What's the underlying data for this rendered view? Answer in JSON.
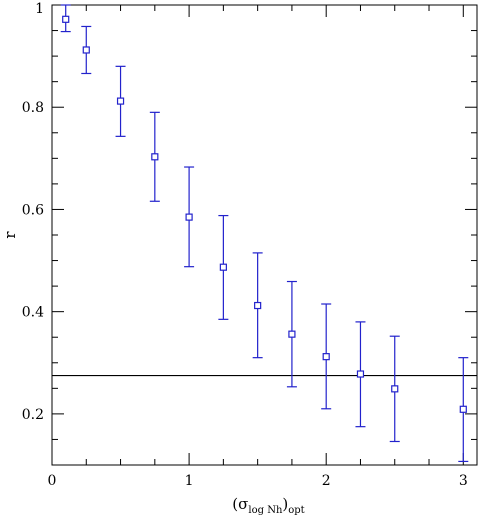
{
  "chart_data": {
    "type": "scatter",
    "title": "",
    "xlabel": "(σ",
    "xlabel_sub": "log Nh",
    "xlabel_close": ")",
    "xlabel_sub2": "opt",
    "ylabel": "r",
    "xlim": [
      0,
      3.1
    ],
    "ylim": [
      0.1,
      1.0
    ],
    "x_ticks": [
      0,
      1,
      2,
      3
    ],
    "x_tick_labels": [
      "0",
      "1",
      "2",
      "3"
    ],
    "y_ticks": [
      0.2,
      0.4,
      0.6,
      0.8,
      1.0
    ],
    "y_tick_labels": [
      "0.2",
      "0.4",
      "0.6",
      "0.8",
      "1"
    ],
    "x_minor_step": 0.25,
    "y_minor_step": 0.05,
    "marker": "open-square",
    "series_color": "#2222cc",
    "reference_line": {
      "y": 0.275,
      "color": "#000000"
    },
    "points": [
      {
        "x": 0.1,
        "y": 0.972,
        "err_low": 0.948,
        "err_high": 1.0
      },
      {
        "x": 0.25,
        "y": 0.912,
        "err_low": 0.866,
        "err_high": 0.958
      },
      {
        "x": 0.5,
        "y": 0.812,
        "err_low": 0.743,
        "err_high": 0.88
      },
      {
        "x": 0.75,
        "y": 0.703,
        "err_low": 0.616,
        "err_high": 0.79
      },
      {
        "x": 1.0,
        "y": 0.585,
        "err_low": 0.488,
        "err_high": 0.683
      },
      {
        "x": 1.25,
        "y": 0.487,
        "err_low": 0.385,
        "err_high": 0.588
      },
      {
        "x": 1.5,
        "y": 0.412,
        "err_low": 0.31,
        "err_high": 0.515
      },
      {
        "x": 1.75,
        "y": 0.356,
        "err_low": 0.253,
        "err_high": 0.459
      },
      {
        "x": 2.0,
        "y": 0.312,
        "err_low": 0.21,
        "err_high": 0.415
      },
      {
        "x": 2.25,
        "y": 0.278,
        "err_low": 0.175,
        "err_high": 0.38
      },
      {
        "x": 2.5,
        "y": 0.249,
        "err_low": 0.146,
        "err_high": 0.352
      },
      {
        "x": 3.0,
        "y": 0.209,
        "err_low": 0.107,
        "err_high": 0.31
      }
    ]
  }
}
